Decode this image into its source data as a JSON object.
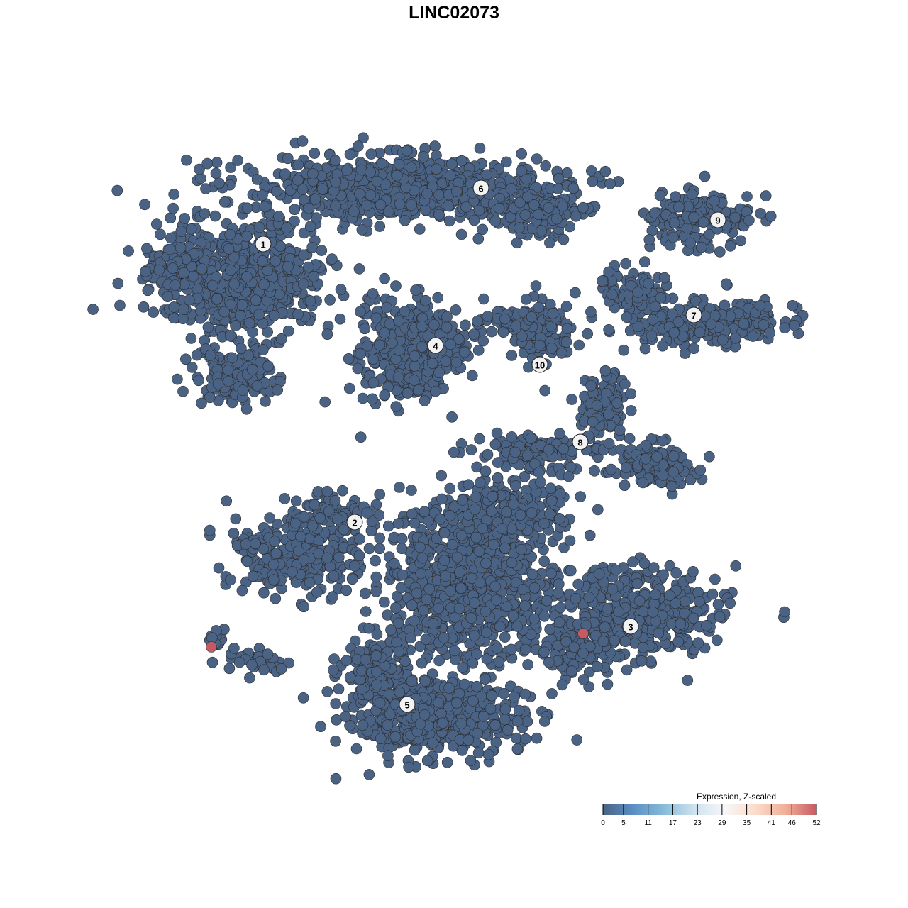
{
  "chart_data": {
    "type": "scatter",
    "title": "LINC02073",
    "xlabel": "",
    "ylabel": "",
    "grid": false,
    "point_base_color": "#4a6385",
    "point_outline_color": "#2b2b2b",
    "cluster_labels": [
      "1",
      "2",
      "3",
      "4",
      "5",
      "6",
      "7",
      "8",
      "9",
      "10"
    ],
    "highlighted_points": [
      {
        "cluster": "2",
        "value": 52,
        "color": "#c65a64"
      },
      {
        "cluster": "3",
        "value": 52,
        "color": "#c65a64"
      }
    ],
    "legend": {
      "title": "Expression, Z-scaled",
      "placement": "bottom-right",
      "ticks": [
        "0",
        "5",
        "11",
        "17",
        "23",
        "29",
        "35",
        "41",
        "46",
        "52"
      ],
      "range": [
        0,
        52
      ],
      "colors": [
        "#4a6385",
        "#5b8fc4",
        "#88bcd9",
        "#cfe2ee",
        "#f7f7f7",
        "#fbdccb",
        "#f1ae97",
        "#c65a64"
      ]
    }
  }
}
